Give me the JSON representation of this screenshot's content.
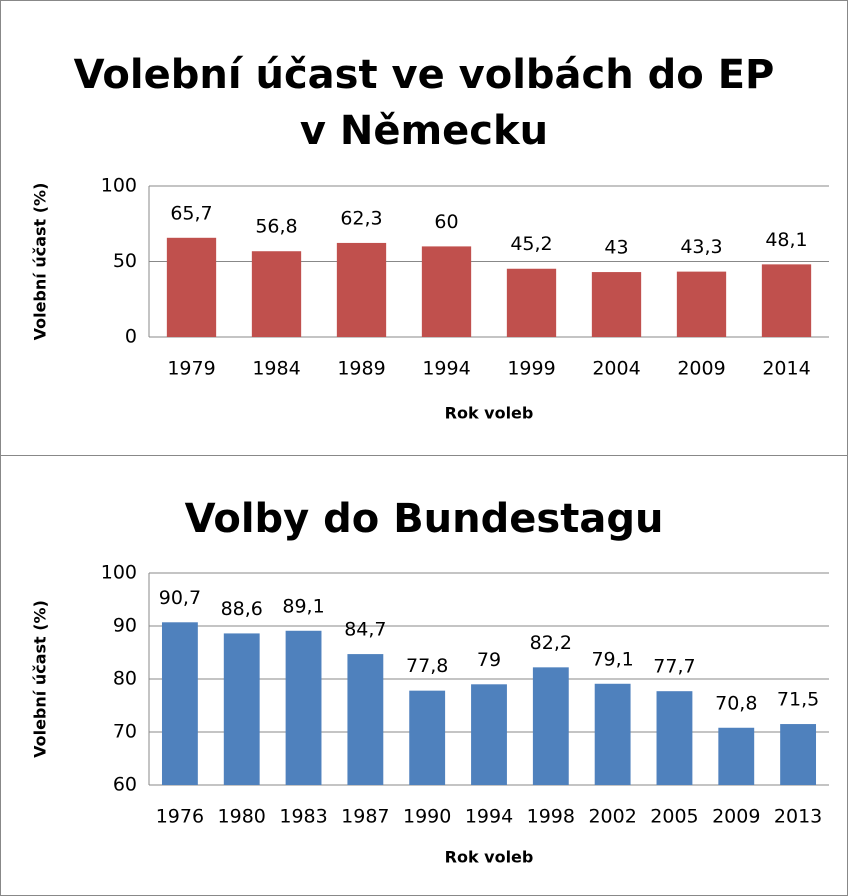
{
  "chart_data": [
    {
      "type": "bar",
      "title": "Volební účast ve volbách do EP v Německu",
      "x_label": "Rok voleb",
      "y_label": "Volební účast (%)",
      "categories": [
        "1979",
        "1984",
        "1989",
        "1994",
        "1999",
        "2004",
        "2009",
        "2014"
      ],
      "values": [
        65.7,
        56.8,
        62.3,
        60,
        45.2,
        43,
        43.3,
        48.1
      ],
      "value_labels": [
        "65,7",
        "56,8",
        "62,3",
        "60",
        "45,2",
        "43",
        "43,3",
        "48,1"
      ],
      "color": "#c0504d",
      "ylim": [
        0,
        100
      ],
      "yticks": [
        0,
        50,
        100
      ],
      "grid": true
    },
    {
      "type": "bar",
      "title": "Volby do Bundestagu",
      "x_label": "Rok voleb",
      "y_label": "Volební účast (%)",
      "categories": [
        "1976",
        "1980",
        "1983",
        "1987",
        "1990",
        "1994",
        "1998",
        "2002",
        "2005",
        "2009",
        "2013"
      ],
      "values": [
        90.7,
        88.6,
        89.1,
        84.7,
        77.8,
        79,
        82.2,
        79.1,
        77.7,
        70.8,
        71.5
      ],
      "value_labels": [
        "90,7",
        "88,6",
        "89,1",
        "84,7",
        "77,8",
        "79",
        "82,2",
        "79,1",
        "77,7",
        "70,8",
        "71,5"
      ],
      "color": "#4f81bd",
      "ylim": [
        60,
        100
      ],
      "yticks": [
        60,
        70,
        80,
        90,
        100
      ],
      "grid": true
    }
  ]
}
